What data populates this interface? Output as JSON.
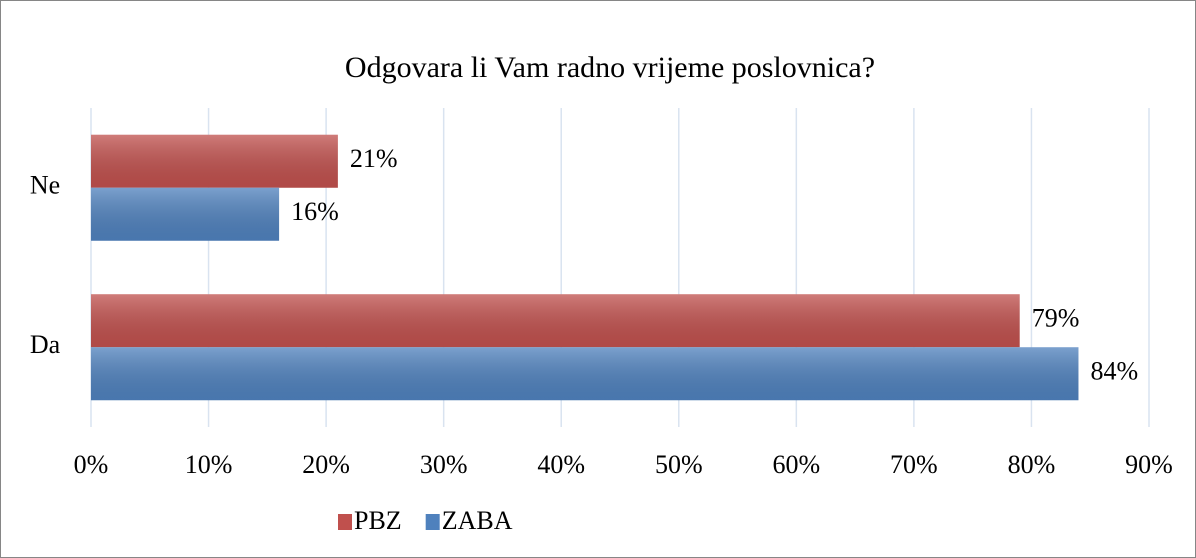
{
  "chart_data": {
    "type": "hbar",
    "title": "Odgovara li Vam radno vrijeme poslovnica?",
    "categories": [
      "Ne",
      "Da"
    ],
    "series": [
      {
        "name": "PBZ",
        "color": "#c0504d",
        "values": [
          21,
          79
        ],
        "value_labels": [
          "21%",
          "79%"
        ]
      },
      {
        "name": "ZABA",
        "color": "#4f81bd",
        "values": [
          16,
          84
        ],
        "value_labels": [
          "16%",
          "84%"
        ]
      }
    ],
    "xlim": [
      0,
      90
    ],
    "xticks": [
      {
        "value": 0,
        "label": "0%"
      },
      {
        "value": 10,
        "label": "10%"
      },
      {
        "value": 20,
        "label": "20%"
      },
      {
        "value": 30,
        "label": "30%"
      },
      {
        "value": 40,
        "label": "40%"
      },
      {
        "value": 50,
        "label": "50%"
      },
      {
        "value": 60,
        "label": "60%"
      },
      {
        "value": 70,
        "label": "70%"
      },
      {
        "value": 80,
        "label": "80%"
      },
      {
        "value": 90,
        "label": "90%"
      }
    ],
    "grid": true,
    "legend": "bottom"
  }
}
